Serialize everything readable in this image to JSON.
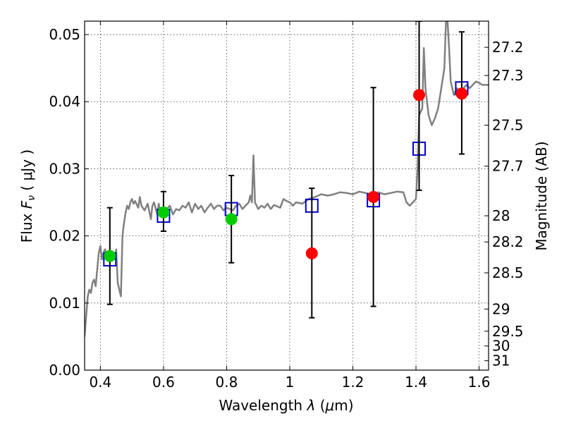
{
  "chart_data": {
    "type": "scatter",
    "xlabel_text": "Wavelength",
    "xlabel_symbol": "λ",
    "xlabel_unit_open": "(",
    "xlabel_unit_mu": "μ",
    "xlabel_unit_rest": "m)",
    "ylabel_text": "Flux",
    "ylabel_symbol": "F",
    "ylabel_sub": "ν",
    "ylabel_unit": "( μJy )",
    "y2label": "Magnitude (AB)",
    "xlim": [
      0.35,
      1.63
    ],
    "ylim": [
      0.0,
      0.052
    ],
    "grid": true,
    "xticks": [
      0.4,
      0.6,
      0.8,
      1.0,
      1.2,
      1.4,
      1.6
    ],
    "xtick_labels": [
      "0.4",
      "0.6",
      "0.8",
      "1",
      "1.2",
      "1.4",
      "1.6"
    ],
    "yticks": [
      0.0,
      0.01,
      0.02,
      0.03,
      0.04,
      0.05
    ],
    "ytick_labels": [
      "0.00",
      "0.01",
      "0.02",
      "0.03",
      "0.04",
      "0.05"
    ],
    "y2ticks": [
      {
        "label": "27.2",
        "flux": 0.0481
      },
      {
        "label": "27.3",
        "flux": 0.0439
      },
      {
        "label": "27.5",
        "flux": 0.0365
      },
      {
        "label": "27.7",
        "flux": 0.0304
      },
      {
        "label": "28",
        "flux": 0.023
      },
      {
        "label": "28.2",
        "flux": 0.0191
      },
      {
        "label": "28.5",
        "flux": 0.0145
      },
      {
        "label": "29",
        "flux": 0.0091
      },
      {
        "label": "29.5",
        "flux": 0.0058
      },
      {
        "label": "30",
        "flux": 0.0036
      },
      {
        "label": "31",
        "flux": 0.0014
      }
    ],
    "series": [
      {
        "kind": "line",
        "color": "#808080",
        "points": [
          [
            0.35,
            0.005
          ],
          [
            0.355,
            0.008
          ],
          [
            0.36,
            0.011
          ],
          [
            0.365,
            0.012
          ],
          [
            0.37,
            0.0115
          ],
          [
            0.375,
            0.013
          ],
          [
            0.38,
            0.0135
          ],
          [
            0.385,
            0.0125
          ],
          [
            0.39,
            0.015
          ],
          [
            0.395,
            0.0175
          ],
          [
            0.4,
            0.0185
          ],
          [
            0.405,
            0.0165
          ],
          [
            0.41,
            0.0175
          ],
          [
            0.415,
            0.018
          ],
          [
            0.42,
            0.0165
          ],
          [
            0.425,
            0.017
          ],
          [
            0.43,
            0.0162
          ],
          [
            0.435,
            0.0168
          ],
          [
            0.44,
            0.0175
          ],
          [
            0.445,
            0.0165
          ],
          [
            0.45,
            0.018
          ],
          [
            0.455,
            0.013
          ],
          [
            0.46,
            0.012
          ],
          [
            0.465,
            0.011
          ],
          [
            0.47,
            0.02
          ],
          [
            0.475,
            0.022
          ],
          [
            0.48,
            0.0235
          ],
          [
            0.485,
            0.0245
          ],
          [
            0.49,
            0.024
          ],
          [
            0.495,
            0.025
          ],
          [
            0.5,
            0.0255
          ],
          [
            0.505,
            0.0248
          ],
          [
            0.51,
            0.0252
          ],
          [
            0.52,
            0.0242
          ],
          [
            0.525,
            0.0258
          ],
          [
            0.53,
            0.0245
          ],
          [
            0.54,
            0.0238
          ],
          [
            0.55,
            0.0248
          ],
          [
            0.56,
            0.0225
          ],
          [
            0.565,
            0.0245
          ],
          [
            0.57,
            0.025
          ],
          [
            0.58,
            0.0232
          ],
          [
            0.585,
            0.0248
          ],
          [
            0.59,
            0.0235
          ],
          [
            0.6,
            0.0228
          ],
          [
            0.61,
            0.024
          ],
          [
            0.62,
            0.0245
          ],
          [
            0.63,
            0.0232
          ],
          [
            0.64,
            0.024
          ],
          [
            0.65,
            0.0238
          ],
          [
            0.66,
            0.0245
          ],
          [
            0.67,
            0.0242
          ],
          [
            0.68,
            0.025
          ],
          [
            0.69,
            0.0235
          ],
          [
            0.7,
            0.0248
          ],
          [
            0.71,
            0.024
          ],
          [
            0.72,
            0.0245
          ],
          [
            0.73,
            0.0235
          ],
          [
            0.74,
            0.0242
          ],
          [
            0.75,
            0.0248
          ],
          [
            0.76,
            0.024
          ],
          [
            0.77,
            0.0245
          ],
          [
            0.78,
            0.0245
          ],
          [
            0.79,
            0.0238
          ],
          [
            0.8,
            0.0242
          ],
          [
            0.81,
            0.024
          ],
          [
            0.82,
            0.0238
          ],
          [
            0.83,
            0.0245
          ],
          [
            0.84,
            0.0248
          ],
          [
            0.85,
            0.024
          ],
          [
            0.86,
            0.0245
          ],
          [
            0.87,
            0.025
          ],
          [
            0.875,
            0.026
          ],
          [
            0.88,
            0.025
          ],
          [
            0.885,
            0.032
          ],
          [
            0.89,
            0.025
          ],
          [
            0.9,
            0.024
          ],
          [
            0.91,
            0.0245
          ],
          [
            0.92,
            0.0242
          ],
          [
            0.93,
            0.0248
          ],
          [
            0.94,
            0.024
          ],
          [
            0.95,
            0.0246
          ],
          [
            0.96,
            0.0244
          ],
          [
            0.97,
            0.0242
          ],
          [
            0.98,
            0.0255
          ],
          [
            0.99,
            0.0252
          ],
          [
            1.0,
            0.025
          ],
          [
            1.01,
            0.0245
          ],
          [
            1.02,
            0.025
          ],
          [
            1.04,
            0.0248
          ],
          [
            1.06,
            0.0255
          ],
          [
            1.08,
            0.0258
          ],
          [
            1.1,
            0.0262
          ],
          [
            1.12,
            0.026
          ],
          [
            1.14,
            0.0262
          ],
          [
            1.16,
            0.0265
          ],
          [
            1.18,
            0.0264
          ],
          [
            1.2,
            0.0262
          ],
          [
            1.22,
            0.0266
          ],
          [
            1.24,
            0.0264
          ],
          [
            1.26,
            0.0262
          ],
          [
            1.28,
            0.0265
          ],
          [
            1.3,
            0.0262
          ],
          [
            1.32,
            0.0264
          ],
          [
            1.34,
            0.0266
          ],
          [
            1.36,
            0.0265
          ],
          [
            1.37,
            0.025
          ],
          [
            1.38,
            0.0245
          ],
          [
            1.39,
            0.025
          ],
          [
            1.4,
            0.0255
          ],
          [
            1.405,
            0.03
          ],
          [
            1.41,
            0.038
          ],
          [
            1.42,
            0.039
          ],
          [
            1.425,
            0.048
          ],
          [
            1.43,
            0.042
          ],
          [
            1.44,
            0.038
          ],
          [
            1.45,
            0.0365
          ],
          [
            1.46,
            0.0375
          ],
          [
            1.47,
            0.039
          ],
          [
            1.48,
            0.042
          ],
          [
            1.49,
            0.045
          ],
          [
            1.495,
            0.052
          ],
          [
            1.5,
            0.052
          ],
          [
            1.505,
            0.048
          ],
          [
            1.51,
            0.043
          ],
          [
            1.52,
            0.041
          ],
          [
            1.53,
            0.042
          ],
          [
            1.54,
            0.041
          ],
          [
            1.55,
            0.042
          ],
          [
            1.56,
            0.0425
          ],
          [
            1.57,
            0.042
          ],
          [
            1.58,
            0.0425
          ],
          [
            1.59,
            0.043
          ],
          [
            1.6,
            0.0428
          ],
          [
            1.61,
            0.0425
          ],
          [
            1.62,
            0.0425
          ],
          [
            1.63,
            0.0425
          ]
        ]
      },
      {
        "kind": "open-square",
        "color": "#0000cc",
        "points": [
          [
            0.43,
            0.0165
          ],
          [
            0.6,
            0.023
          ],
          [
            0.815,
            0.024
          ],
          [
            1.07,
            0.0245
          ],
          [
            1.265,
            0.0253
          ],
          [
            1.41,
            0.033
          ],
          [
            1.545,
            0.042
          ]
        ]
      },
      {
        "kind": "filled-circle",
        "color": "#00cc00",
        "points": [
          {
            "x": 0.43,
            "y": 0.017,
            "ylo": 0.0098,
            "yhi": 0.0242
          },
          {
            "x": 0.6,
            "y": 0.0235,
            "ylo": 0.0207,
            "yhi": 0.0266
          },
          {
            "x": 0.815,
            "y": 0.0225,
            "ylo": 0.016,
            "yhi": 0.029
          }
        ]
      },
      {
        "kind": "filled-circle",
        "color": "#ff0000",
        "points": [
          {
            "x": 1.07,
            "y": 0.0174,
            "ylo": 0.0078,
            "yhi": 0.0271
          },
          {
            "x": 1.265,
            "y": 0.0258,
            "ylo": 0.0095,
            "yhi": 0.0421
          },
          {
            "x": 1.41,
            "y": 0.041,
            "ylo": 0.0268,
            "yhi": 0.052
          },
          {
            "x": 1.545,
            "y": 0.0412,
            "ylo": 0.0322,
            "yhi": 0.0504
          }
        ]
      }
    ]
  }
}
